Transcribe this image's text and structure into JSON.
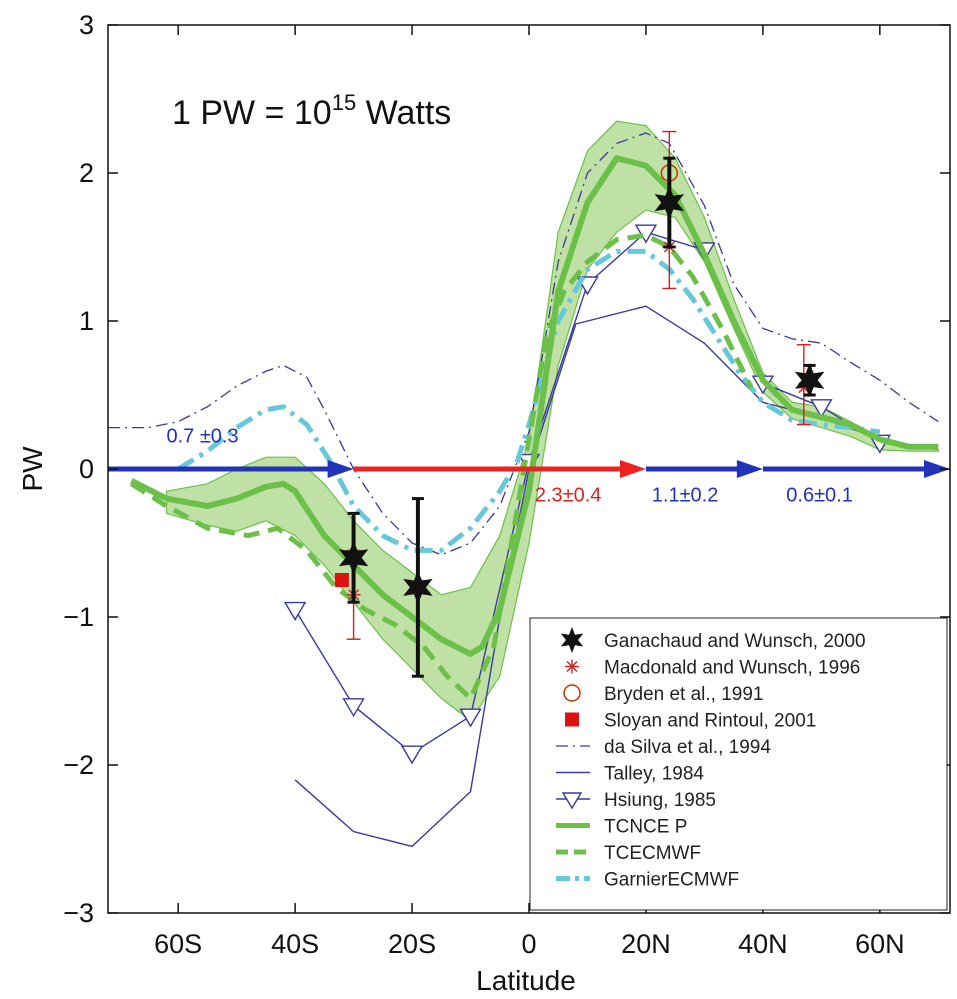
{
  "chart_data": {
    "type": "line",
    "annotation": {
      "prefix": "1 PW = 10",
      "superscript": "15",
      "suffix": " Watts"
    },
    "xlabel": "Latitude",
    "ylabel": "PW",
    "xlim": [
      -72,
      72
    ],
    "ylim": [
      -3,
      3
    ],
    "x_ticks": [
      {
        "value": -60,
        "label": "60S"
      },
      {
        "value": -40,
        "label": "40S"
      },
      {
        "value": -20,
        "label": "20S"
      },
      {
        "value": 0,
        "label": "0"
      },
      {
        "value": 20,
        "label": "20N"
      },
      {
        "value": 40,
        "label": "40N"
      },
      {
        "value": 60,
        "label": "60N"
      }
    ],
    "y_ticks": [
      {
        "value": -3,
        "label": "−3"
      },
      {
        "value": -2,
        "label": "−2"
      },
      {
        "value": -1,
        "label": "−1"
      },
      {
        "value": 0,
        "label": "0"
      },
      {
        "value": 1,
        "label": "1"
      },
      {
        "value": 2,
        "label": "2"
      },
      {
        "value": 3,
        "label": "3"
      }
    ],
    "grid": false,
    "legend_position": "bottom-right",
    "colors": {
      "tcnce": "#6cc04a",
      "tcnce_band": "#b5dc96",
      "tcecmwf": "#6cc04a",
      "garnier": "#66c8d8",
      "dasilva": "#3a3a9a",
      "talley": "#3a3a9a",
      "hsiung": "#3a3a9a",
      "ganachaud": "#111111",
      "macdonald": "#cc2222",
      "bryden": "#cc3300",
      "sloyan": "#dd1111",
      "arrow_blue": "#2233bb",
      "arrow_red": "#ee2222"
    },
    "series": [
      {
        "name": "da Silva et al., 1994",
        "style": "dashdot",
        "x": [
          -72,
          -65,
          -60,
          -55,
          -50,
          -45,
          -42,
          -38,
          -35,
          -30,
          -25,
          -20,
          -15,
          -10,
          -5,
          -2,
          0,
          2,
          5,
          10,
          15,
          20,
          24,
          30,
          35,
          40,
          45,
          50,
          55,
          60,
          65,
          70
        ],
        "y": [
          0.28,
          0.28,
          0.32,
          0.42,
          0.56,
          0.66,
          0.7,
          0.62,
          0.4,
          0.0,
          -0.3,
          -0.5,
          -0.58,
          -0.5,
          -0.25,
          0.05,
          0.25,
          0.7,
          1.4,
          2.0,
          2.2,
          2.27,
          2.2,
          1.78,
          1.25,
          0.95,
          0.88,
          0.85,
          0.72,
          0.6,
          0.45,
          0.32
        ]
      },
      {
        "name": "Talley, 1984",
        "style": "solid",
        "x": [
          -40,
          -30,
          -20,
          -10,
          -5,
          0,
          8,
          20,
          30,
          40,
          50,
          60
        ],
        "y": [
          -2.1,
          -2.45,
          -2.55,
          -2.18,
          -1.0,
          0.0,
          0.98,
          1.1,
          0.85,
          0.45,
          0.35,
          0.2
        ]
      },
      {
        "name": "Hsiung, 1985",
        "style": "triangle",
        "x": [
          -40,
          -30,
          -20,
          -10,
          0,
          10,
          20,
          30,
          40,
          50,
          60
        ],
        "y": [
          -0.95,
          -1.6,
          -1.92,
          -1.67,
          0.05,
          1.25,
          1.6,
          1.48,
          0.58,
          0.42,
          0.18
        ]
      },
      {
        "name": "GarnierECMWF",
        "style": "dashdot",
        "x": [
          -60,
          -55,
          -50,
          -45,
          -42,
          -38,
          -34,
          -30,
          -25,
          -20,
          -15,
          -10,
          -5,
          -2,
          0,
          5,
          10,
          15,
          20,
          24,
          28,
          32,
          36,
          40,
          45,
          50,
          55,
          60
        ],
        "y": [
          0.0,
          0.12,
          0.28,
          0.4,
          0.42,
          0.3,
          0.05,
          -0.25,
          -0.45,
          -0.55,
          -0.55,
          -0.4,
          -0.15,
          0.05,
          0.3,
          1.0,
          1.35,
          1.47,
          1.47,
          1.35,
          1.15,
          0.9,
          0.65,
          0.45,
          0.33,
          0.3,
          0.28,
          0.25
        ]
      },
      {
        "name": "TCECMWF",
        "style": "dashed",
        "x": [
          -68,
          -62,
          -55,
          -48,
          -43,
          -38,
          -33,
          -28,
          -23,
          -18,
          -14,
          -10,
          -6,
          -3,
          0,
          3,
          6,
          10,
          15,
          20,
          24,
          28,
          33,
          38
        ],
        "y": [
          -0.1,
          -0.25,
          -0.4,
          -0.45,
          -0.4,
          -0.55,
          -0.8,
          -0.95,
          -1.05,
          -1.2,
          -1.4,
          -1.55,
          -1.2,
          -0.5,
          0.2,
          0.9,
          1.2,
          1.4,
          1.55,
          1.58,
          1.5,
          1.3,
          0.95,
          0.55
        ]
      }
    ],
    "tcnce_band": {
      "x": [
        -62,
        -55,
        -50,
        -45,
        -40,
        -35,
        -30,
        -25,
        -20,
        -15,
        -10,
        -5,
        0,
        5,
        10,
        15,
        20,
        25,
        30,
        35,
        40,
        45,
        50,
        55,
        60,
        65,
        70
      ],
      "upper": [
        -0.15,
        -0.1,
        0.0,
        0.08,
        0.08,
        -0.1,
        -0.35,
        -0.55,
        -0.7,
        -0.85,
        -0.8,
        -0.45,
        0.2,
        1.6,
        2.15,
        2.35,
        2.32,
        2.1,
        1.7,
        1.15,
        0.65,
        0.45,
        0.42,
        0.32,
        0.2,
        0.15,
        0.13
      ],
      "lower": [
        -0.3,
        -0.38,
        -0.42,
        -0.35,
        -0.45,
        -0.65,
        -0.9,
        -1.15,
        -1.35,
        -1.55,
        -1.7,
        -1.4,
        -0.5,
        0.7,
        1.35,
        1.6,
        1.75,
        1.7,
        1.4,
        0.95,
        0.52,
        0.34,
        0.28,
        0.22,
        0.13,
        0.12,
        0.12
      ]
    },
    "tcnce_line": {
      "name": "TCNCE  P",
      "x": [
        -68,
        -62,
        -55,
        -50,
        -45,
        -42,
        -40,
        -35,
        -30,
        -25,
        -20,
        -15,
        -10,
        -8,
        -5,
        0,
        5,
        10,
        15,
        20,
        25,
        30,
        35,
        40,
        45,
        50,
        55,
        60,
        65,
        70
      ],
      "y": [
        -0.08,
        -0.2,
        -0.25,
        -0.2,
        -0.12,
        -0.1,
        -0.15,
        -0.45,
        -0.65,
        -0.85,
        -1.0,
        -1.15,
        -1.25,
        -1.2,
        -0.95,
        -0.15,
        1.2,
        1.8,
        2.1,
        2.05,
        1.85,
        1.45,
        1.0,
        0.6,
        0.4,
        0.35,
        0.3,
        0.2,
        0.15,
        0.15
      ]
    },
    "points": {
      "ganachaud": {
        "name": "Ganachaud and Wunsch, 2000",
        "items": [
          {
            "x": -30,
            "y": -0.6,
            "lo": -0.9,
            "hi": -0.3
          },
          {
            "x": -19,
            "y": -0.8,
            "lo": -1.4,
            "hi": -0.2
          },
          {
            "x": 24,
            "y": 1.8,
            "lo": 1.5,
            "hi": 2.1
          },
          {
            "x": 48,
            "y": 0.6,
            "lo": 0.5,
            "hi": 0.7
          }
        ]
      },
      "macdonald": {
        "name": "Macdonald and Wunsch, 1996",
        "items": [
          {
            "x": -30,
            "y": -0.85,
            "lo": -1.15,
            "hi": -0.55
          },
          {
            "x": 24,
            "y": 1.5,
            "lo": 1.22,
            "hi": 2.28
          },
          {
            "x": 47,
            "y": 0.55,
            "lo": 0.3,
            "hi": 0.84
          }
        ]
      },
      "bryden": {
        "name": "Bryden et al., 1991",
        "items": [
          {
            "x": 24,
            "y": 2.0
          }
        ]
      },
      "sloyan": {
        "name": "Sloyan and Rintoul, 2001",
        "items": [
          {
            "x": -32,
            "y": -0.75
          }
        ]
      }
    },
    "transport_arrows": [
      {
        "x_start": -72,
        "x_end": -30,
        "color": "#2233bb"
      },
      {
        "x_start": -30,
        "x_end": 20,
        "color": "#ee2222"
      },
      {
        "x_start": 20,
        "x_end": 40,
        "color": "#2233bb"
      },
      {
        "x_start": 40,
        "x_end": 72,
        "color": "#2233bb"
      }
    ],
    "arrow_labels": [
      {
        "text": "0.7  ±0.3",
        "x": -62,
        "y": 0.18,
        "color": "#2233bb"
      },
      {
        "text": "2.3±0.4",
        "x": 1,
        "y": -0.22,
        "color": "#dd2222"
      },
      {
        "text": "1.1±0.2",
        "x": 21,
        "y": -0.22,
        "color": "#2233bb"
      },
      {
        "text": "0.6±0.1",
        "x": 44,
        "y": -0.22,
        "color": "#2233bb"
      }
    ],
    "legend": [
      {
        "key": "ganachaud",
        "label": "Ganachaud and Wunsch, 2000"
      },
      {
        "key": "macdonald",
        "label": "Macdonald and Wunsch, 1996"
      },
      {
        "key": "bryden",
        "label": "Bryden et al., 1991"
      },
      {
        "key": "sloyan",
        "label": "Sloyan and Rintoul, 2001"
      },
      {
        "key": "dasilva",
        "label": "da Silva et al., 1994"
      },
      {
        "key": "talley",
        "label": "Talley, 1984"
      },
      {
        "key": "hsiung",
        "label": "Hsiung, 1985"
      },
      {
        "key": "tcnce",
        "label": "TCNCE  P"
      },
      {
        "key": "tcecmwf",
        "label": "TCECMWF"
      },
      {
        "key": "garnier",
        "label": "GarnierECMWF"
      }
    ]
  }
}
